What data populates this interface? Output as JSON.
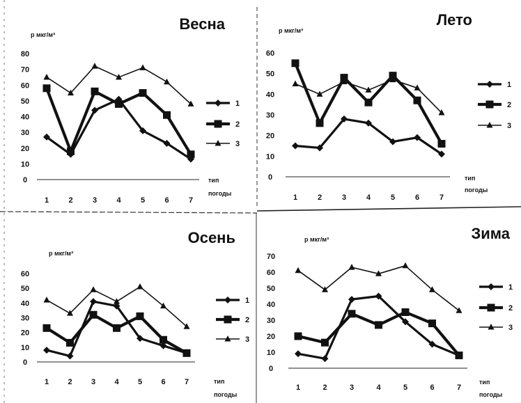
{
  "chart_data": [
    {
      "type": "line",
      "title": "Весна",
      "ylabel": "р мкг/м³",
      "xlabel_line1": "тип",
      "xlabel_line2": "погоды",
      "x": [
        "1",
        "2",
        "3",
        "4",
        "5",
        "6",
        "7"
      ],
      "ylim": [
        0,
        80
      ],
      "yticks": [
        "0",
        "10",
        "20",
        "30",
        "40",
        "50",
        "60",
        "70",
        "80"
      ],
      "grid": false,
      "legend_position": "right",
      "series": [
        {
          "name": "1",
          "marker": "diamond",
          "values": [
            27,
            16,
            44,
            51,
            31,
            23,
            13
          ]
        },
        {
          "name": "2",
          "marker": "square",
          "values": [
            58,
            18,
            56,
            48,
            55,
            41,
            16
          ]
        },
        {
          "name": "3",
          "marker": "triangle",
          "values": [
            65,
            55,
            72,
            65,
            71,
            62,
            48
          ]
        }
      ]
    },
    {
      "type": "line",
      "title": "Лето",
      "ylabel": "р мкг/м³",
      "xlabel_line1": "тип",
      "xlabel_line2": "погоды",
      "x": [
        "1",
        "2",
        "3",
        "4",
        "5",
        "6",
        "7"
      ],
      "ylim": [
        0,
        60
      ],
      "yticks": [
        "0",
        "10",
        "20",
        "30",
        "40",
        "50",
        "60"
      ],
      "grid": false,
      "legend_position": "right",
      "series": [
        {
          "name": "1",
          "marker": "diamond",
          "values": [
            15,
            14,
            28,
            26,
            17,
            19,
            11
          ]
        },
        {
          "name": "2",
          "marker": "square",
          "values": [
            55,
            26,
            48,
            36,
            49,
            37,
            16
          ]
        },
        {
          "name": "3",
          "marker": "triangle",
          "values": [
            45,
            40,
            46,
            42,
            47,
            43,
            31
          ]
        }
      ]
    },
    {
      "type": "line",
      "title": "Осень",
      "ylabel": "р мкг/м³",
      "xlabel_line1": "тип",
      "xlabel_line2": "погоды",
      "x": [
        "1",
        "2",
        "3",
        "4",
        "5",
        "6",
        "7"
      ],
      "ylim": [
        0,
        60
      ],
      "yticks": [
        "0",
        "10",
        "20",
        "30",
        "40",
        "50",
        "60"
      ],
      "grid": false,
      "legend_position": "right",
      "series": [
        {
          "name": "1",
          "marker": "diamond",
          "values": [
            8,
            4,
            41,
            38,
            16,
            11,
            6
          ]
        },
        {
          "name": "2",
          "marker": "square",
          "values": [
            23,
            13,
            32,
            23,
            31,
            15,
            6
          ]
        },
        {
          "name": "3",
          "marker": "triangle",
          "values": [
            42,
            33,
            49,
            41,
            51,
            38,
            24
          ]
        }
      ]
    },
    {
      "type": "line",
      "title": "Зима",
      "ylabel": "р мкг/м³",
      "xlabel_line1": "тип",
      "xlabel_line2": "погоды",
      "x": [
        "1",
        "2",
        "3",
        "4",
        "5",
        "6",
        "7"
      ],
      "ylim": [
        0,
        70
      ],
      "yticks": [
        "0",
        "10",
        "20",
        "30",
        "40",
        "50",
        "60",
        "70"
      ],
      "grid": false,
      "legend_position": "right",
      "series": [
        {
          "name": "1",
          "marker": "diamond",
          "values": [
            9,
            6,
            43,
            45,
            29,
            15,
            8
          ]
        },
        {
          "name": "2",
          "marker": "square",
          "values": [
            20,
            16,
            34,
            27,
            35,
            28,
            8
          ]
        },
        {
          "name": "3",
          "marker": "triangle",
          "values": [
            61,
            49,
            63,
            59,
            64,
            49,
            36
          ]
        }
      ]
    }
  ]
}
